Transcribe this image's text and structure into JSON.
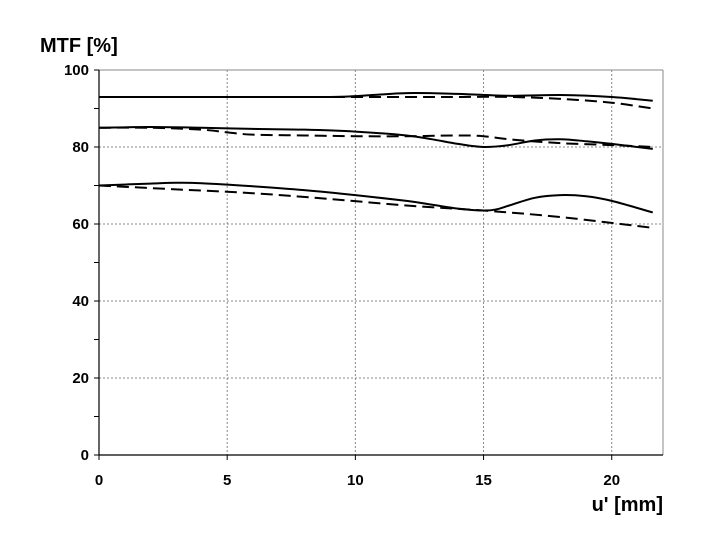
{
  "chart_data": {
    "type": "line",
    "title": "",
    "xlabel": "u' [mm]",
    "ylabel": "MTF [%]",
    "xlim": [
      0,
      22
    ],
    "ylim": [
      0,
      100
    ],
    "x_ticks": [
      0,
      5,
      10,
      15,
      20
    ],
    "y_ticks": [
      0,
      20,
      40,
      60,
      80,
      100
    ],
    "grid": true,
    "legend": "none",
    "series": [
      {
        "style": "solid",
        "x": [
          0,
          3,
          6,
          9,
          10,
          12,
          14,
          16,
          18,
          20,
          21.6
        ],
        "y": [
          93,
          93,
          93,
          93,
          93.2,
          94,
          93.8,
          93.3,
          93.5,
          93,
          92
        ]
      },
      {
        "style": "dashed",
        "x": [
          0,
          3,
          6,
          9,
          12,
          14,
          16,
          18,
          20,
          21.6
        ],
        "y": [
          93,
          93,
          93,
          93,
          93,
          93,
          93,
          92.5,
          91.5,
          90
        ]
      },
      {
        "style": "solid",
        "x": [
          0,
          2,
          4,
          6,
          8,
          10,
          12,
          13,
          14,
          15,
          16,
          17,
          18,
          19,
          20,
          21.6
        ],
        "y": [
          85,
          85.2,
          85,
          84.7,
          84.5,
          84,
          83,
          82,
          80.8,
          80,
          80.5,
          81.7,
          82,
          81.5,
          80.8,
          79.5
        ]
      },
      {
        "style": "dashed",
        "x": [
          0,
          2,
          4,
          5,
          6,
          8,
          10,
          12,
          14,
          15,
          16,
          18,
          20,
          21.6
        ],
        "y": [
          85,
          85,
          84.5,
          83.8,
          83.2,
          83,
          82.8,
          82.8,
          83,
          82.8,
          82,
          81,
          80.5,
          80
        ]
      },
      {
        "style": "solid",
        "x": [
          0,
          2,
          3,
          4,
          6,
          8,
          10,
          12,
          13,
          14,
          15,
          15.5,
          16,
          17,
          18,
          19,
          20,
          21.6
        ],
        "y": [
          70,
          70.5,
          70.7,
          70.6,
          69.8,
          68.8,
          67.5,
          66,
          65,
          64,
          63.5,
          63.8,
          64.8,
          66.8,
          67.5,
          67.2,
          66,
          63
        ]
      },
      {
        "style": "dashed",
        "x": [
          0,
          3,
          6,
          9,
          12,
          15,
          18,
          21.6
        ],
        "y": [
          70,
          69,
          68,
          66.5,
          64.8,
          63.5,
          61.8,
          59
        ]
      }
    ]
  }
}
